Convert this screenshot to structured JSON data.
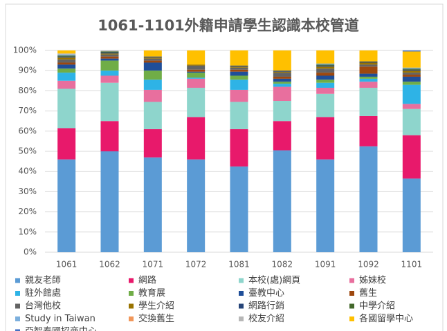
{
  "chart_data": {
    "type": "stacked_bar",
    "title": "1061-1101外籍申請學生認識本校管道",
    "categories": [
      "1061",
      "1062",
      "1071",
      "1072",
      "1081",
      "1082",
      "1091",
      "1092",
      "1101"
    ],
    "ylim": [
      0,
      100
    ],
    "yticks": [
      {
        "value": 0,
        "label": "0%"
      },
      {
        "value": 10,
        "label": "10%"
      },
      {
        "value": 20,
        "label": "20%"
      },
      {
        "value": 30,
        "label": "30%"
      },
      {
        "value": 40,
        "label": "40%"
      },
      {
        "value": 50,
        "label": "50%"
      },
      {
        "value": 60,
        "label": "60%"
      },
      {
        "value": 70,
        "label": "70%"
      },
      {
        "value": 80,
        "label": "80%"
      },
      {
        "value": 90,
        "label": "90%"
      },
      {
        "value": 100,
        "label": "100%"
      }
    ],
    "grid": true,
    "legend": "bottom",
    "series": [
      {
        "name": "親友老師",
        "color": "#5b9bd5",
        "values": [
          46,
          50,
          47,
          46,
          42.5,
          50.5,
          46,
          52.5,
          36.5
        ]
      },
      {
        "name": "網路",
        "color": "#e8196b",
        "values": [
          15.5,
          15,
          14,
          21,
          18.5,
          14.5,
          21,
          15,
          21.5
        ]
      },
      {
        "name": "本校(處)網頁",
        "color": "#8ed5cc",
        "values": [
          19.5,
          19,
          13.5,
          14.5,
          13.5,
          10,
          11.5,
          14,
          13
        ]
      },
      {
        "name": "姊妹校",
        "color": "#e86f9e",
        "values": [
          4,
          3.5,
          6,
          4.5,
          6,
          7,
          3,
          3,
          2.5
        ]
      },
      {
        "name": "駐外館處",
        "color": "#2eb3e6",
        "values": [
          4,
          2.5,
          5,
          0.5,
          5,
          1.5,
          2.5,
          1.5,
          9.5
        ]
      },
      {
        "name": "教育展",
        "color": "#70ad47",
        "values": [
          2,
          5,
          4.5,
          2.5,
          2,
          1,
          1.5,
          1,
          1.5
        ]
      },
      {
        "name": "臺教中心",
        "color": "#1f4e99",
        "values": [
          2,
          1,
          4,
          0.5,
          2,
          1.5,
          2,
          1.5,
          2.5
        ]
      },
      {
        "name": "舊生",
        "color": "#9e480e",
        "values": [
          1,
          1,
          1,
          1,
          1,
          1,
          1.5,
          3.5,
          1
        ]
      },
      {
        "name": "台灣他校",
        "color": "#636363",
        "values": [
          1.5,
          1,
          1,
          2,
          1,
          2,
          2,
          1,
          1
        ]
      },
      {
        "name": "學生介紹",
        "color": "#997300",
        "values": [
          1,
          0.5,
          0.5,
          0.5,
          0.5,
          0.5,
          1,
          1,
          1
        ]
      },
      {
        "name": "網路行銷",
        "color": "#264478",
        "values": [
          0.5,
          0.5,
          0.5,
          0,
          0.5,
          0.5,
          0.5,
          0.5,
          0.5
        ]
      },
      {
        "name": "中學介紹",
        "color": "#43682b",
        "values": [
          0.5,
          0.5,
          0,
          0,
          0,
          0,
          0.5,
          0,
          0.5
        ]
      },
      {
        "name": "Study in Taiwan",
        "color": "#7cafdd",
        "values": [
          0.5,
          0,
          0,
          0,
          0,
          0,
          0.5,
          0,
          0.5
        ]
      },
      {
        "name": "交換舊生",
        "color": "#f1975a",
        "values": [
          0,
          0,
          0,
          0,
          0,
          0,
          0,
          0,
          0
        ]
      },
      {
        "name": "校友介紹",
        "color": "#b7b7b7",
        "values": [
          0.5,
          0.5,
          0,
          0,
          0,
          0,
          0,
          0,
          0
        ]
      },
      {
        "name": "各國留學中心",
        "color": "#ffc000",
        "values": [
          1.5,
          0,
          3,
          7,
          7.5,
          10,
          6.5,
          5.5,
          8
        ]
      },
      {
        "name": "亞智泰國招商中心",
        "color": "#4472c4",
        "values": [
          0,
          0,
          0,
          0,
          0,
          0,
          0,
          0,
          0.5
        ]
      }
    ]
  }
}
